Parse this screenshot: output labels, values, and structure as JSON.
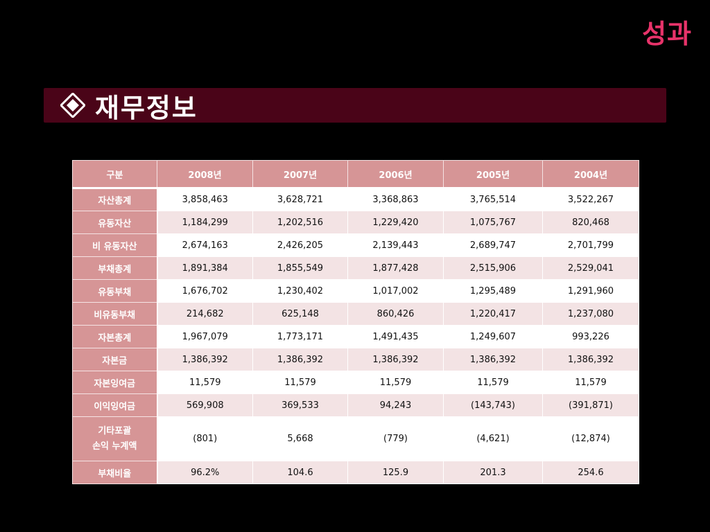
{
  "corner_title": "성과",
  "section_title": "재무정보",
  "icon": "diamond-icon",
  "colors": {
    "background": "#000000",
    "corner_title": "#e8336a",
    "title_bar": "#4a0418",
    "header_cell": "#d69596",
    "row_even": "#ffffff",
    "row_odd": "#f3e3e4"
  },
  "table": {
    "headers": [
      "구분",
      "2008년",
      "2007년",
      "2006년",
      "2005년",
      "2004년"
    ],
    "rows": [
      {
        "label": "자산총계",
        "values": [
          "3,858,463",
          "3,628,721",
          "3,368,863",
          "3,765,514",
          "3,522,267"
        ]
      },
      {
        "label": "유동자산",
        "values": [
          "1,184,299",
          "1,202,516",
          "1,229,420",
          "1,075,767",
          "820,468"
        ]
      },
      {
        "label": "비 유동자산",
        "values": [
          "2,674,163",
          "2,426,205",
          "2,139,443",
          "2,689,747",
          "2,701,799"
        ]
      },
      {
        "label": "부채총계",
        "values": [
          "1,891,384",
          "1,855,549",
          "1,877,428",
          "2,515,906",
          "2,529,041"
        ]
      },
      {
        "label": "유동부채",
        "values": [
          "1,676,702",
          "1,230,402",
          "1,017,002",
          "1,295,489",
          "1,291,960"
        ]
      },
      {
        "label": "비유동부채",
        "values": [
          "214,682",
          "625,148",
          "860,426",
          "1,220,417",
          "1,237,080"
        ]
      },
      {
        "label": "자본총계",
        "values": [
          "1,967,079",
          "1,773,171",
          "1,491,435",
          "1,249,607",
          "993,226"
        ]
      },
      {
        "label": "자본금",
        "values": [
          "1,386,392",
          "1,386,392",
          "1,386,392",
          "1,386,392",
          "1,386,392"
        ]
      },
      {
        "label": "자본잉여금",
        "values": [
          "11,579",
          "11,579",
          "11,579",
          "11,579",
          "11,579"
        ]
      },
      {
        "label": "이익잉여금",
        "values": [
          "569,908",
          "369,533",
          "94,243",
          "(143,743)",
          "(391,871)"
        ]
      },
      {
        "label": "기타포괄",
        "label2": "손익 누계액",
        "values": [
          "(801)",
          "5,668",
          "(779)",
          "(4,621)",
          "(12,874)"
        ]
      },
      {
        "label": "부채비율",
        "values": [
          "96.2%",
          "104.6",
          "125.9",
          "201.3",
          "254.6"
        ]
      }
    ]
  }
}
